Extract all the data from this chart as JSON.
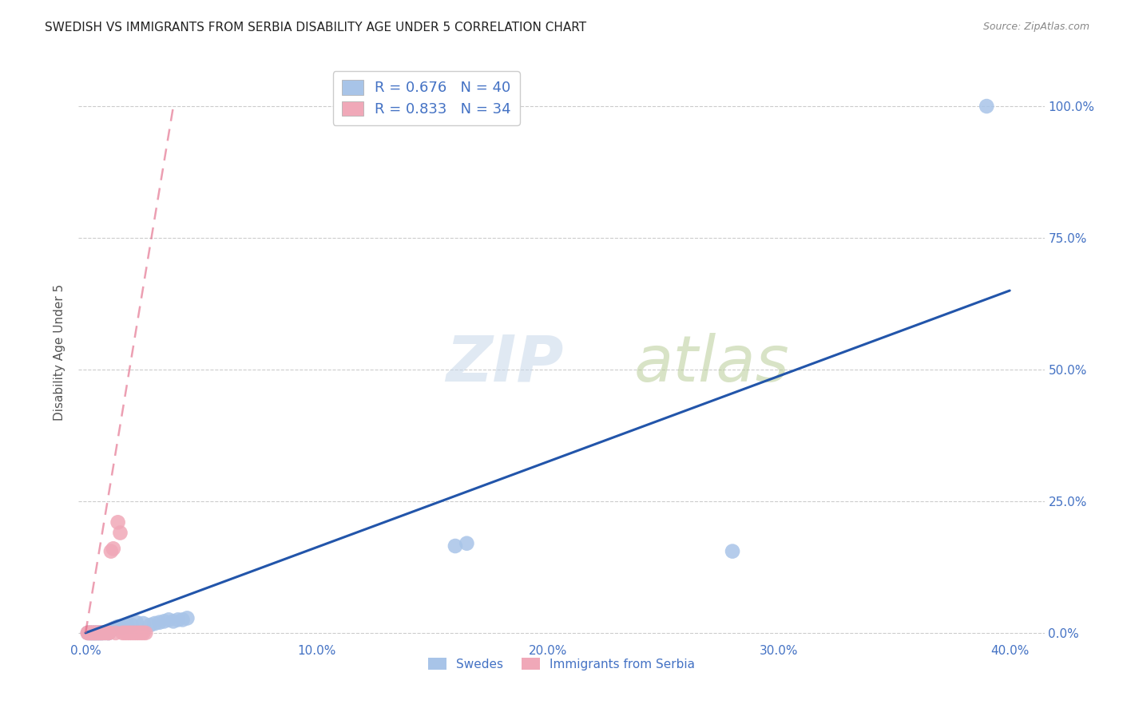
{
  "title": "SWEDISH VS IMMIGRANTS FROM SERBIA DISABILITY AGE UNDER 5 CORRELATION CHART",
  "source": "Source: ZipAtlas.com",
  "ylabel": "Disability Age Under 5",
  "swedes_color": "#a8c4e8",
  "serbia_color": "#f0a8b8",
  "trendline_swedes_color": "#2255aa",
  "trendline_serbia_color": "#e06080",
  "grid_color": "#cccccc",
  "R_swedes": 0.676,
  "N_swedes": 40,
  "R_serbia": 0.833,
  "N_serbia": 34,
  "title_color": "#222222",
  "axis_tick_color": "#4472c4",
  "legend_text_color": "#4472c4",
  "source_color": "#888888",
  "swedes_x": [
    0.001,
    0.002,
    0.002,
    0.003,
    0.003,
    0.004,
    0.004,
    0.005,
    0.005,
    0.006,
    0.006,
    0.007,
    0.007,
    0.008,
    0.009,
    0.01,
    0.01,
    0.011,
    0.012,
    0.013,
    0.014,
    0.015,
    0.016,
    0.018,
    0.02,
    0.022,
    0.025,
    0.028,
    0.03,
    0.032,
    0.034,
    0.036,
    0.038,
    0.04,
    0.042,
    0.044,
    0.16,
    0.165,
    0.28,
    0.39
  ],
  "swedes_y": [
    0.0,
    0.0,
    0.0,
    0.0,
    0.0,
    0.0,
    0.0,
    0.0,
    0.0,
    0.0,
    0.0,
    0.0,
    0.0,
    0.0,
    0.0,
    0.0,
    0.0,
    0.005,
    0.008,
    0.01,
    0.012,
    0.01,
    0.012,
    0.015,
    0.015,
    0.02,
    0.018,
    0.015,
    0.018,
    0.02,
    0.022,
    0.025,
    0.022,
    0.025,
    0.025,
    0.028,
    0.165,
    0.17,
    0.155,
    1.0
  ],
  "serbia_x": [
    0.001,
    0.001,
    0.002,
    0.002,
    0.003,
    0.003,
    0.004,
    0.004,
    0.005,
    0.005,
    0.006,
    0.006,
    0.007,
    0.007,
    0.008,
    0.009,
    0.01,
    0.01,
    0.011,
    0.012,
    0.013,
    0.014,
    0.015,
    0.016,
    0.017,
    0.018,
    0.019,
    0.02,
    0.021,
    0.022,
    0.023,
    0.024,
    0.025,
    0.026
  ],
  "serbia_y": [
    0.0,
    0.0,
    0.0,
    0.0,
    0.0,
    0.0,
    0.0,
    0.0,
    0.0,
    0.0,
    0.0,
    0.0,
    0.0,
    0.0,
    0.0,
    0.0,
    0.0,
    0.0,
    0.155,
    0.16,
    0.0,
    0.21,
    0.19,
    0.0,
    0.0,
    0.0,
    0.0,
    0.0,
    0.0,
    0.0,
    0.0,
    0.0,
    0.0,
    0.0
  ],
  "swedes_trend_x": [
    0.0,
    0.4
  ],
  "swedes_trend_y": [
    0.0,
    0.65
  ],
  "serbia_trend_x": [
    0.0,
    0.038
  ],
  "serbia_trend_y": [
    0.0,
    1.0
  ],
  "xlim": [
    -0.003,
    0.415
  ],
  "ylim": [
    -0.015,
    1.08
  ],
  "xticks": [
    0.0,
    0.1,
    0.2,
    0.3,
    0.4
  ],
  "xticklabels": [
    "0.0%",
    "10.0%",
    "20.0%",
    "30.0%",
    "40.0%"
  ],
  "yticks": [
    0.0,
    0.25,
    0.5,
    0.75,
    1.0
  ],
  "yticklabels": [
    "0.0%",
    "25.0%",
    "50.0%",
    "75.0%",
    "100.0%"
  ]
}
